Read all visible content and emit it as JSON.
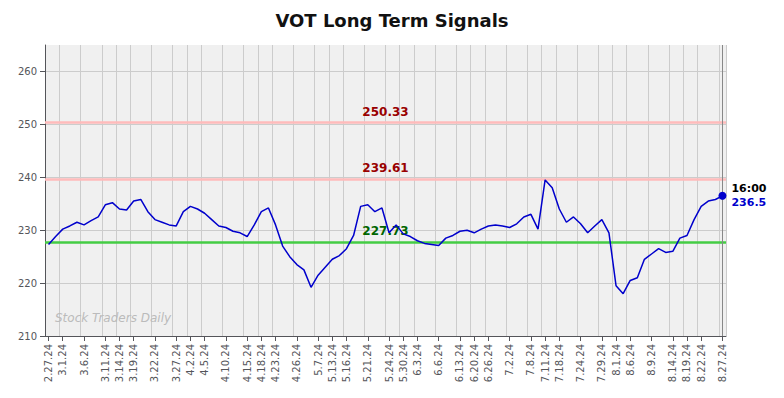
{
  "chart_data": {
    "type": "line",
    "title": "VOT Long Term Signals",
    "color": "#0000cc",
    "grid": true,
    "ylim": [
      210,
      265
    ],
    "yticks": [
      210,
      220,
      230,
      240,
      250,
      260
    ],
    "categories": [
      "2.27.24",
      null,
      "3.1.24",
      null,
      null,
      "3.6.24",
      null,
      null,
      "3.11.24",
      null,
      "3.14.24",
      null,
      "3.19.24",
      null,
      null,
      "3.22.24",
      null,
      null,
      "3.27.24",
      null,
      "4.2.24",
      null,
      "4.5.24",
      null,
      null,
      "4.10.24",
      null,
      null,
      "4.15.24",
      null,
      "4.18.24",
      null,
      "4.23.24",
      null,
      null,
      "4.26.24",
      null,
      null,
      "5.7.24",
      null,
      "5.13.24",
      null,
      "5.16.24",
      null,
      null,
      "5.21.24",
      null,
      null,
      "5.24.24",
      null,
      "5.30.24",
      null,
      "6.3.24",
      null,
      null,
      "6.6.24",
      null,
      null,
      "6.13.24",
      null,
      "6.20.24",
      null,
      "6.26.24",
      null,
      null,
      "7.2.24",
      null,
      null,
      "7.8.24",
      null,
      "7.11.24",
      null,
      "7.18.24",
      null,
      null,
      "7.24.24",
      null,
      null,
      "7.29.24",
      null,
      "8.1.24",
      null,
      "8.6.24",
      null,
      null,
      "8.9.24",
      null,
      null,
      "8.14.24",
      null,
      "8.19.24",
      null,
      "8.22.24",
      null,
      null,
      "8.27.24"
    ],
    "values": [
      227.3,
      228.8,
      230.2,
      230.8,
      231.5,
      231.0,
      231.8,
      232.5,
      234.8,
      235.2,
      234.0,
      233.8,
      235.5,
      235.8,
      233.5,
      232.0,
      231.5,
      231.0,
      230.8,
      233.5,
      234.5,
      234.0,
      233.2,
      232.0,
      230.8,
      230.5,
      229.8,
      229.5,
      228.8,
      231.0,
      233.5,
      234.2,
      231.0,
      227.0,
      225.0,
      223.5,
      222.5,
      219.2,
      221.5,
      223.0,
      224.5,
      225.2,
      226.5,
      229.0,
      234.5,
      234.8,
      233.5,
      234.2,
      229.5,
      231.0,
      229.3,
      228.8,
      228.0,
      227.5,
      227.3,
      227.1,
      228.5,
      229.0,
      229.8,
      230.0,
      229.5,
      230.2,
      230.8,
      231.0,
      230.8,
      230.5,
      231.2,
      232.5,
      233.0,
      230.2,
      239.5,
      238.0,
      234.0,
      231.5,
      232.5,
      231.2,
      229.5,
      230.8,
      232.0,
      229.5,
      219.5,
      218.0,
      220.5,
      221.0,
      224.5,
      225.5,
      226.5,
      225.8,
      226.0,
      228.5,
      229.0,
      232.0,
      234.5,
      235.5,
      235.8,
      236.5
    ],
    "hlines": [
      {
        "value": 250.33,
        "label": "250.33",
        "color": "#ffbbbb",
        "label_color": "#990000"
      },
      {
        "value": 239.61,
        "label": "239.61",
        "color": "#ffbbbb",
        "label_color": "#990000"
      },
      {
        "value": 227.73,
        "label": "227.73",
        "color": "#44cc44",
        "label_color": "#006600"
      }
    ],
    "last_point": {
      "value": 236.5,
      "label": "236.5",
      "time_label": "16:00"
    },
    "watermark": "Stock Traders Daily"
  }
}
